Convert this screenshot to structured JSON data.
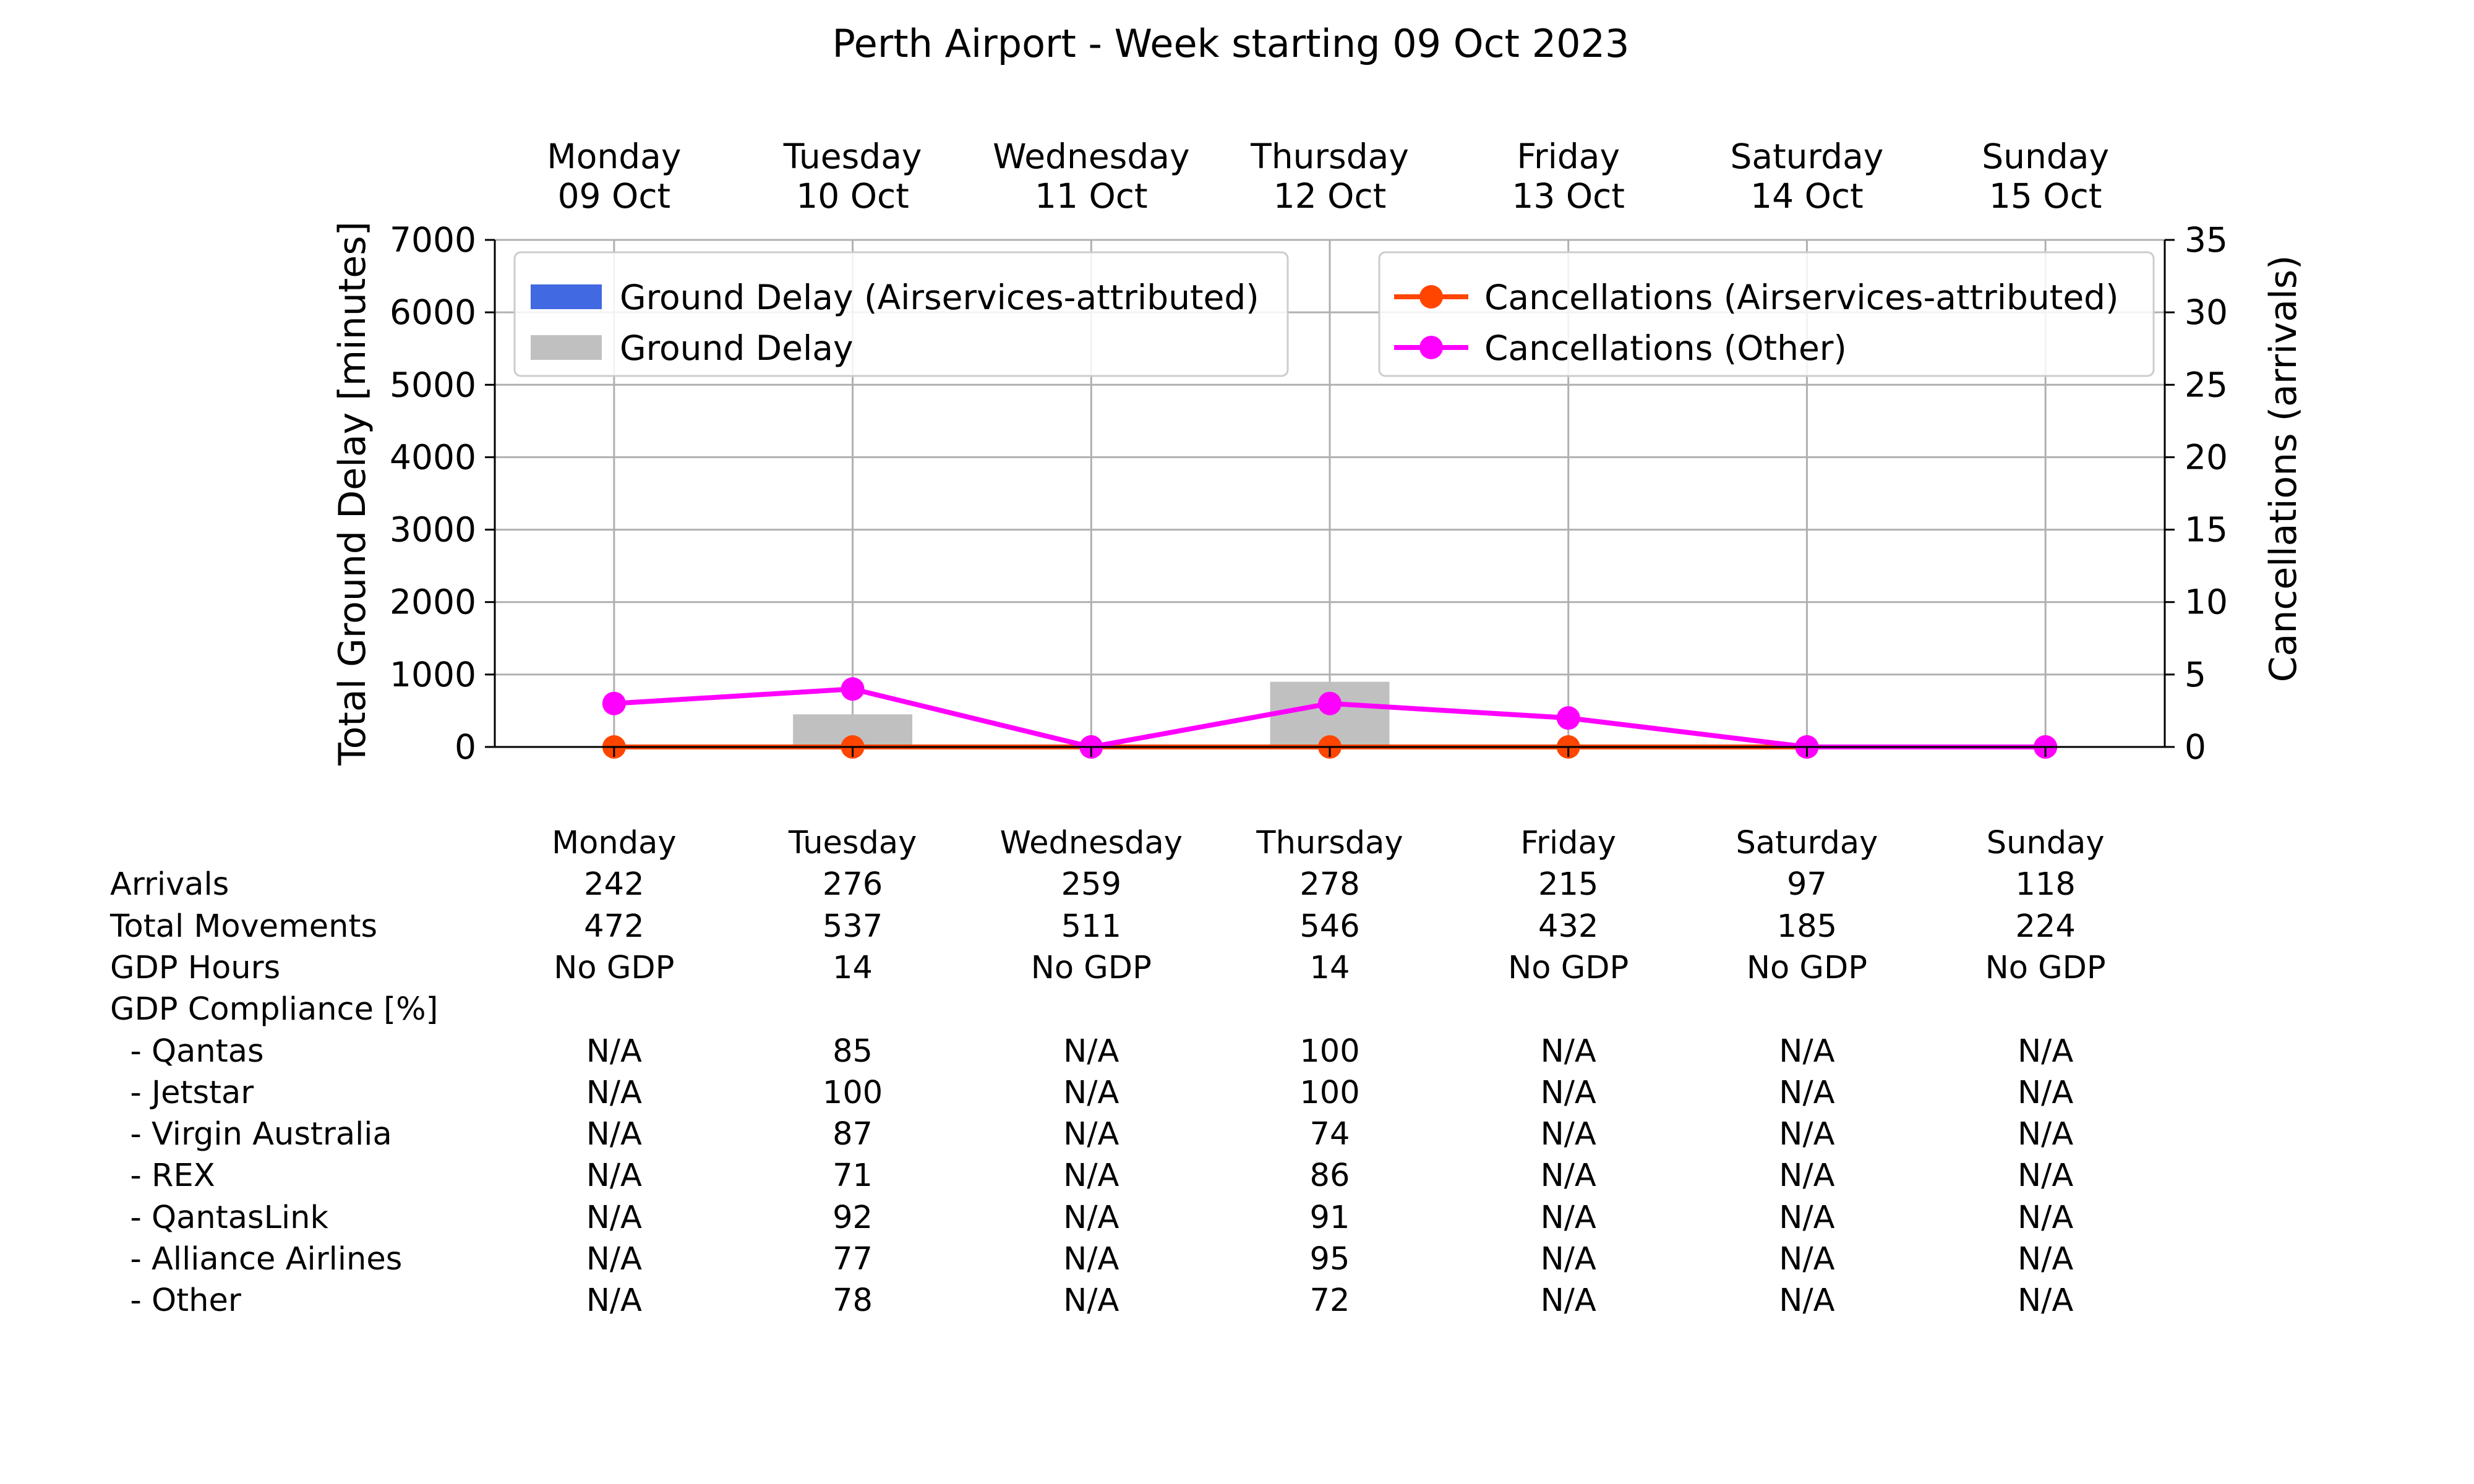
{
  "chart_data": {
    "type": "bar",
    "title": "Perth Airport - Week starting 09 Oct 2023",
    "days": [
      {
        "weekday": "Monday",
        "date": "09 Oct"
      },
      {
        "weekday": "Tuesday",
        "date": "10 Oct"
      },
      {
        "weekday": "Wednesday",
        "date": "11 Oct"
      },
      {
        "weekday": "Thursday",
        "date": "12 Oct"
      },
      {
        "weekday": "Friday",
        "date": "13 Oct"
      },
      {
        "weekday": "Saturday",
        "date": "14 Oct"
      },
      {
        "weekday": "Sunday",
        "date": "15 Oct"
      }
    ],
    "ylabel_left": "Total Ground Delay [minutes]",
    "ylabel_right": "Cancellations (arrivals)",
    "ylim_left": [
      0,
      7000
    ],
    "ylim_right": [
      0,
      35
    ],
    "yticks_left": [
      "0",
      "1000",
      "2000",
      "3000",
      "4000",
      "5000",
      "6000",
      "7000"
    ],
    "yticks_right": [
      "0",
      "5",
      "10",
      "15",
      "20",
      "25",
      "30",
      "35"
    ],
    "grid": true,
    "bar_series": [
      {
        "name": "Ground Delay (Airservices-attributed)",
        "color": "#4169e1",
        "values": [
          0,
          0,
          0,
          0,
          0,
          0,
          0
        ]
      },
      {
        "name": "Ground Delay",
        "color": "#c0c0c0",
        "values": [
          0,
          450,
          0,
          900,
          0,
          0,
          0
        ]
      }
    ],
    "line_series": [
      {
        "name": "Cancellations (Airservices-attributed)",
        "color": "#ff4500",
        "values": [
          0,
          0,
          0,
          0,
          0,
          0,
          0
        ]
      },
      {
        "name": "Cancellations (Other)",
        "color": "#ff00ff",
        "values": [
          3,
          4,
          0,
          3,
          2,
          0,
          0
        ]
      }
    ],
    "legend_left_placement": "upper-left",
    "legend_right_placement": "upper-right"
  },
  "table": {
    "headers": [
      "Monday",
      "Tuesday",
      "Wednesday",
      "Thursday",
      "Friday",
      "Saturday",
      "Sunday"
    ],
    "rows": [
      {
        "label": "Arrivals",
        "values": [
          "242",
          "276",
          "259",
          "278",
          "215",
          "97",
          "118"
        ]
      },
      {
        "label": "Total Movements",
        "values": [
          "472",
          "537",
          "511",
          "546",
          "432",
          "185",
          "224"
        ]
      },
      {
        "label": "GDP Hours",
        "values": [
          "No GDP",
          "14",
          "No GDP",
          "14",
          "No GDP",
          "No GDP",
          "No GDP"
        ]
      },
      {
        "label": "GDP Compliance [%]",
        "values": [
          "",
          "",
          "",
          "",
          "",
          "",
          ""
        ]
      },
      {
        "label": "  - Qantas",
        "values": [
          "N/A",
          "85",
          "N/A",
          "100",
          "N/A",
          "N/A",
          "N/A"
        ]
      },
      {
        "label": "  - Jetstar",
        "values": [
          "N/A",
          "100",
          "N/A",
          "100",
          "N/A",
          "N/A",
          "N/A"
        ]
      },
      {
        "label": "  - Virgin Australia",
        "values": [
          "N/A",
          "87",
          "N/A",
          "74",
          "N/A",
          "N/A",
          "N/A"
        ]
      },
      {
        "label": "  - REX",
        "values": [
          "N/A",
          "71",
          "N/A",
          "86",
          "N/A",
          "N/A",
          "N/A"
        ]
      },
      {
        "label": "  - QantasLink",
        "values": [
          "N/A",
          "92",
          "N/A",
          "91",
          "N/A",
          "N/A",
          "N/A"
        ]
      },
      {
        "label": "  - Alliance Airlines",
        "values": [
          "N/A",
          "77",
          "N/A",
          "95",
          "N/A",
          "N/A",
          "N/A"
        ]
      },
      {
        "label": "  - Other",
        "values": [
          "N/A",
          "78",
          "N/A",
          "72",
          "N/A",
          "N/A",
          "N/A"
        ]
      }
    ]
  }
}
